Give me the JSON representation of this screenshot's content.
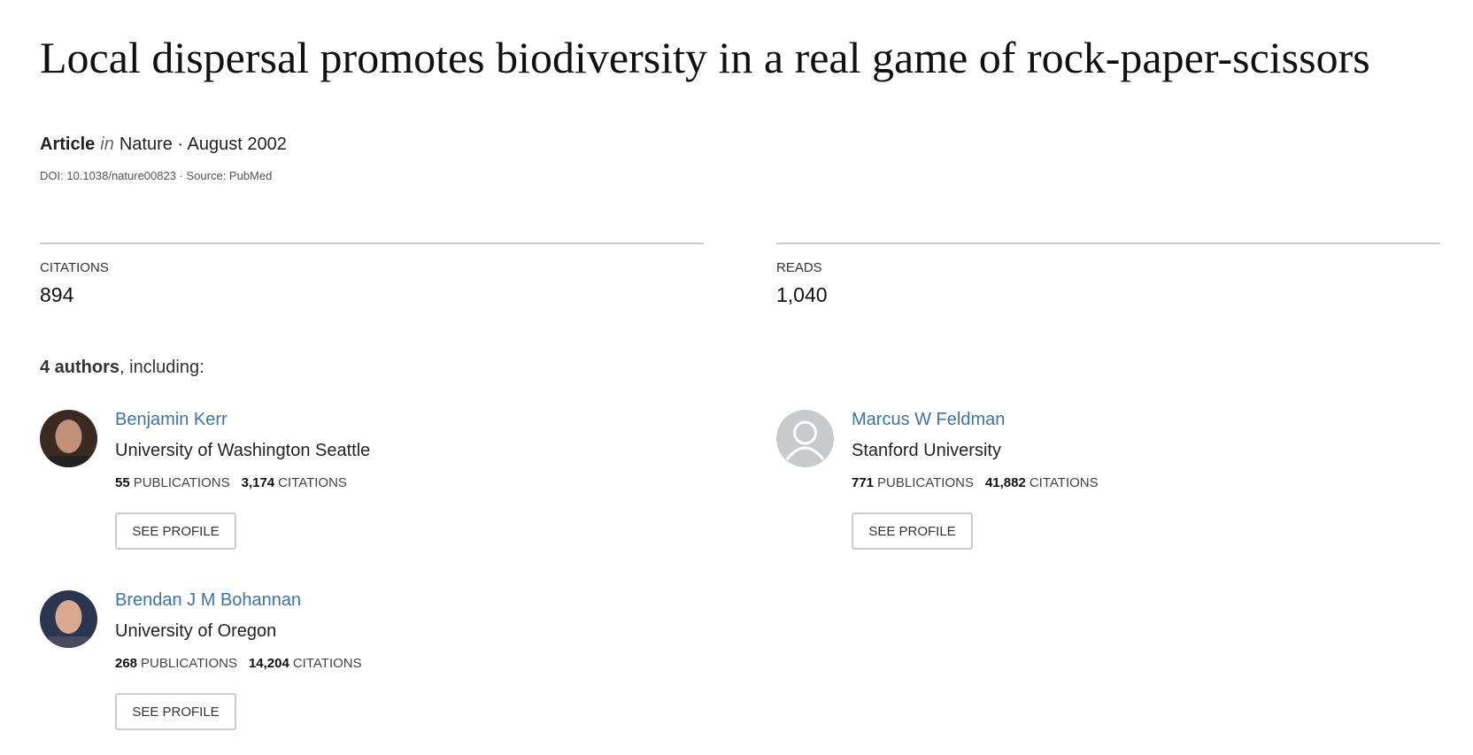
{
  "header": {
    "title": "Local dispersal promotes biodiversity in a real game of rock-paper-scissors",
    "type": "Article",
    "in": "in",
    "journal": "Nature · August 2002",
    "doi": "DOI: 10.1038/nature00823 · Source: PubMed"
  },
  "stats": [
    {
      "label": "CITATIONS",
      "value": "894"
    },
    {
      "label": "READS",
      "value": "1,040"
    }
  ],
  "authors_heading": {
    "count": "4 authors",
    "rest": ", including:"
  },
  "authors": [
    {
      "name": "Benjamin Kerr",
      "affiliation": "University of Washington Seattle",
      "publications": "55",
      "publications_label": "PUBLICATIONS",
      "citations": "3,174",
      "citations_label": "CITATIONS",
      "button": "SEE PROFILE"
    },
    {
      "name": "Marcus W Feldman",
      "affiliation": "Stanford University",
      "publications": "771",
      "publications_label": "PUBLICATIONS",
      "citations": "41,882",
      "citations_label": "CITATIONS",
      "button": "SEE PROFILE"
    },
    {
      "name": "Brendan J M Bohannan",
      "affiliation": "University of Oregon",
      "publications": "268",
      "publications_label": "PUBLICATIONS",
      "citations": "14,204",
      "citations_label": "CITATIONS",
      "button": "SEE PROFILE"
    }
  ]
}
